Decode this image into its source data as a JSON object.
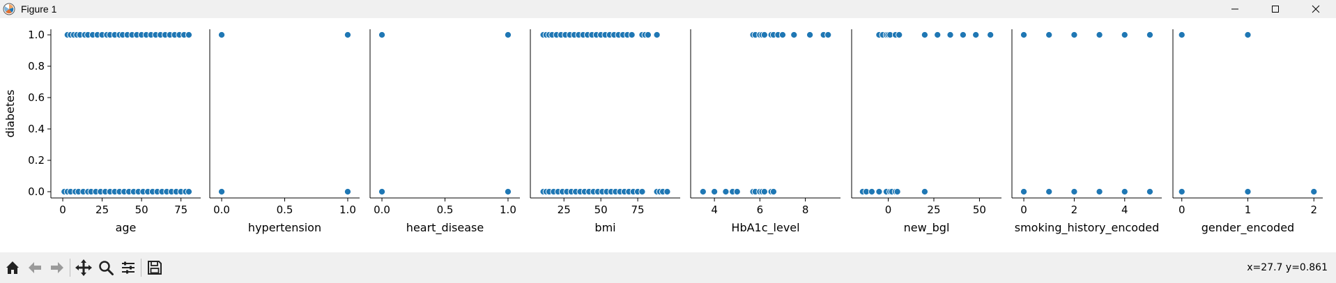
{
  "window": {
    "title": "Figure 1",
    "icon": "matplotlib-logo-icon",
    "controls": [
      "minimize-icon",
      "maximize-icon",
      "close-icon"
    ]
  },
  "toolbar": {
    "buttons": [
      "home-icon",
      "back-icon",
      "forward-icon",
      "pan-icon",
      "zoom-icon",
      "configure-subplots-icon",
      "save-icon"
    ],
    "coordinates": "x=27.7 y=0.861"
  },
  "chart_data": {
    "type": "scatter",
    "ylabel": "diabetes",
    "ylim": [
      -0.05,
      1.05
    ],
    "yticks": [
      0.0,
      0.2,
      0.4,
      0.6,
      0.8,
      1.0
    ],
    "ytick_labels": [
      "0.0",
      "0.2",
      "0.4",
      "0.6",
      "0.8",
      "1.0"
    ],
    "marker_color": "#1f77b4",
    "grid": false,
    "panels": [
      {
        "xlabel": "age",
        "xlim": [
          -4,
          84
        ],
        "xticks": [
          0,
          25,
          50,
          75
        ],
        "xtick_labels": [
          "0",
          "25",
          "50",
          "75"
        ],
        "points": [
          [
            3,
            1
          ],
          [
            5,
            1
          ],
          [
            7,
            1
          ],
          [
            9,
            1
          ],
          [
            11,
            1
          ],
          [
            14,
            1
          ],
          [
            16,
            1
          ],
          [
            19,
            1
          ],
          [
            22,
            1
          ],
          [
            25,
            1
          ],
          [
            28,
            1
          ],
          [
            30,
            1
          ],
          [
            33,
            1
          ],
          [
            36,
            1
          ],
          [
            38,
            1
          ],
          [
            41,
            1
          ],
          [
            44,
            1
          ],
          [
            47,
            1
          ],
          [
            50,
            1
          ],
          [
            53,
            1
          ],
          [
            56,
            1
          ],
          [
            59,
            1
          ],
          [
            62,
            1
          ],
          [
            65,
            1
          ],
          [
            68,
            1
          ],
          [
            71,
            1
          ],
          [
            74,
            1
          ],
          [
            77,
            1
          ],
          [
            80,
            1
          ],
          [
            1,
            0
          ],
          [
            3,
            0
          ],
          [
            5,
            0
          ],
          [
            8,
            0
          ],
          [
            10,
            0
          ],
          [
            13,
            0
          ],
          [
            16,
            0
          ],
          [
            18,
            0
          ],
          [
            21,
            0
          ],
          [
            24,
            0
          ],
          [
            27,
            0
          ],
          [
            30,
            0
          ],
          [
            33,
            0
          ],
          [
            36,
            0
          ],
          [
            39,
            0
          ],
          [
            42,
            0
          ],
          [
            45,
            0
          ],
          [
            48,
            0
          ],
          [
            51,
            0
          ],
          [
            54,
            0
          ],
          [
            57,
            0
          ],
          [
            60,
            0
          ],
          [
            63,
            0
          ],
          [
            66,
            0
          ],
          [
            69,
            0
          ],
          [
            72,
            0
          ],
          [
            75,
            0
          ],
          [
            78,
            0
          ],
          [
            80,
            0
          ]
        ]
      },
      {
        "xlabel": "hypertension",
        "xlim": [
          -0.05,
          1.05
        ],
        "xticks": [
          0.0,
          0.5,
          1.0
        ],
        "xtick_labels": [
          "0.0",
          "0.5",
          "1.0"
        ],
        "points": [
          [
            0,
            1
          ],
          [
            1,
            1
          ],
          [
            0,
            0
          ],
          [
            1,
            0
          ]
        ]
      },
      {
        "xlabel": "heart_disease",
        "xlim": [
          -0.05,
          1.05
        ],
        "xticks": [
          0.0,
          0.5,
          1.0
        ],
        "xtick_labels": [
          "0.0",
          "0.5",
          "1.0"
        ],
        "points": [
          [
            0,
            1
          ],
          [
            1,
            1
          ],
          [
            0,
            0
          ],
          [
            1,
            0
          ]
        ]
      },
      {
        "xlabel": "bmi",
        "xlim": [
          6,
          100
        ],
        "xticks": [
          25,
          50,
          75
        ],
        "xtick_labels": [
          "25",
          "50",
          "75"
        ],
        "points": [
          [
            11,
            1
          ],
          [
            13,
            1
          ],
          [
            15,
            1
          ],
          [
            17,
            1
          ],
          [
            20,
            1
          ],
          [
            23,
            1
          ],
          [
            26,
            1
          ],
          [
            29,
            1
          ],
          [
            32,
            1
          ],
          [
            35,
            1
          ],
          [
            38,
            1
          ],
          [
            41,
            1
          ],
          [
            44,
            1
          ],
          [
            47,
            1
          ],
          [
            50,
            1
          ],
          [
            53,
            1
          ],
          [
            56,
            1
          ],
          [
            59,
            1
          ],
          [
            62,
            1
          ],
          [
            65,
            1
          ],
          [
            68,
            1
          ],
          [
            71,
            1
          ],
          [
            78,
            1
          ],
          [
            80,
            1
          ],
          [
            82,
            1
          ],
          [
            88,
            1
          ],
          [
            11,
            0
          ],
          [
            13,
            0
          ],
          [
            15,
            0
          ],
          [
            18,
            0
          ],
          [
            21,
            0
          ],
          [
            24,
            0
          ],
          [
            27,
            0
          ],
          [
            30,
            0
          ],
          [
            33,
            0
          ],
          [
            36,
            0
          ],
          [
            39,
            0
          ],
          [
            42,
            0
          ],
          [
            45,
            0
          ],
          [
            48,
            0
          ],
          [
            51,
            0
          ],
          [
            54,
            0
          ],
          [
            57,
            0
          ],
          [
            60,
            0
          ],
          [
            63,
            0
          ],
          [
            66,
            0
          ],
          [
            69,
            0
          ],
          [
            72,
            0
          ],
          [
            75,
            0
          ],
          [
            78,
            0
          ],
          [
            88,
            0
          ],
          [
            90,
            0
          ],
          [
            92,
            0
          ],
          [
            95,
            0
          ]
        ]
      },
      {
        "xlabel": "HbA1c_level",
        "xlim": [
          3.2,
          9.3
        ],
        "xticks": [
          4,
          6,
          8
        ],
        "xtick_labels": [
          "4",
          "6",
          "8"
        ],
        "points": [
          [
            5.7,
            1
          ],
          [
            5.8,
            1
          ],
          [
            6.0,
            1
          ],
          [
            6.1,
            1
          ],
          [
            6.2,
            1
          ],
          [
            6.5,
            1
          ],
          [
            6.6,
            1
          ],
          [
            6.8,
            1
          ],
          [
            7.0,
            1
          ],
          [
            7.5,
            1
          ],
          [
            8.2,
            1
          ],
          [
            8.8,
            1
          ],
          [
            9.0,
            1
          ],
          [
            3.5,
            0
          ],
          [
            4.0,
            0
          ],
          [
            4.5,
            0
          ],
          [
            4.8,
            0
          ],
          [
            5.0,
            0
          ],
          [
            5.7,
            0
          ],
          [
            5.8,
            0
          ],
          [
            6.0,
            0
          ],
          [
            6.1,
            0
          ],
          [
            6.2,
            0
          ],
          [
            6.5,
            0
          ],
          [
            6.6,
            0
          ]
        ]
      },
      {
        "xlabel": "new_bgl",
        "xlim": [
          -17,
          59
        ],
        "xticks": [
          0,
          25,
          50
        ],
        "xtick_labels": [
          "0",
          "25",
          "50"
        ],
        "points": [
          [
            -5,
            1
          ],
          [
            -3,
            1
          ],
          [
            -1,
            1
          ],
          [
            0,
            1
          ],
          [
            1,
            1
          ],
          [
            4,
            1
          ],
          [
            6,
            1
          ],
          [
            20,
            1
          ],
          [
            27,
            1
          ],
          [
            34,
            1
          ],
          [
            41,
            1
          ],
          [
            48,
            1
          ],
          [
            56,
            1
          ],
          [
            -14,
            0
          ],
          [
            -12,
            0
          ],
          [
            -9,
            0
          ],
          [
            -5,
            0
          ],
          [
            -1,
            0
          ],
          [
            1,
            0
          ],
          [
            2,
            0
          ],
          [
            4,
            0
          ],
          [
            5,
            0
          ],
          [
            20,
            0
          ]
        ]
      },
      {
        "xlabel": "smoking_history_encoded",
        "xlim": [
          -0.25,
          5.25
        ],
        "xticks": [
          0,
          2,
          4
        ],
        "xtick_labels": [
          "0",
          "2",
          "4"
        ],
        "points": [
          [
            0,
            1
          ],
          [
            1,
            1
          ],
          [
            2,
            1
          ],
          [
            3,
            1
          ],
          [
            4,
            1
          ],
          [
            5,
            1
          ],
          [
            0,
            0
          ],
          [
            1,
            0
          ],
          [
            2,
            0
          ],
          [
            3,
            0
          ],
          [
            4,
            0
          ],
          [
            5,
            0
          ]
        ]
      },
      {
        "xlabel": "gender_encoded",
        "xlim": [
          -0.05,
          2.05
        ],
        "xticks": [
          0,
          1,
          2
        ],
        "xtick_labels": [
          "0",
          "1",
          "2"
        ],
        "points": [
          [
            0,
            1
          ],
          [
            1,
            1
          ],
          [
            0,
            0
          ],
          [
            1,
            0
          ],
          [
            2,
            0
          ]
        ]
      }
    ]
  }
}
